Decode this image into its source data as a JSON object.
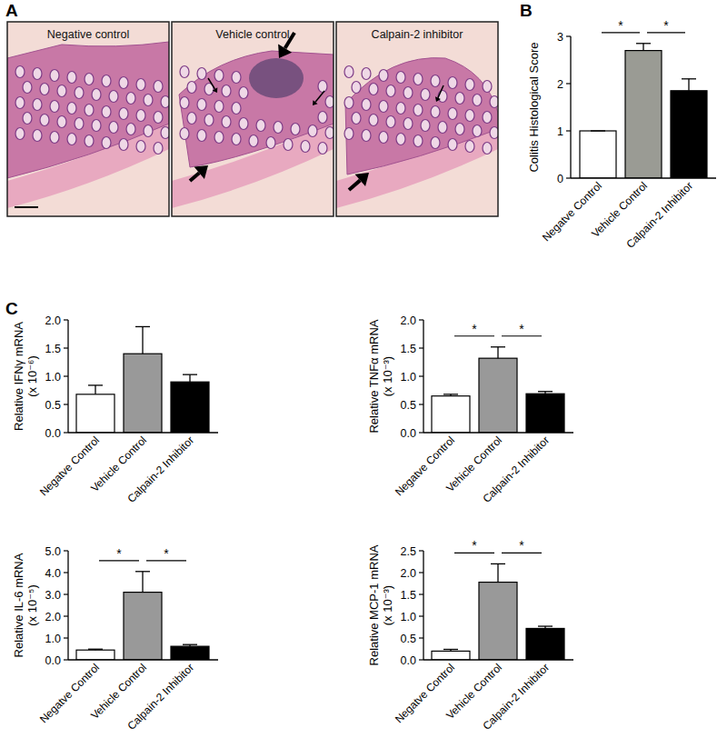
{
  "figure": {
    "panel_labels": [
      "A",
      "B",
      "C"
    ],
    "images": [
      "Negative control",
      "Vehicle control",
      "Calpain-2 inhibitor"
    ]
  },
  "chart_data": [
    {
      "type": "bar",
      "y_label": [
        "Colitis Histological Score"
      ],
      "categories": [
        "Negatve Control",
        "Vehicle Control",
        "Calpain-2 Inhibitor"
      ],
      "values": [
        1.0,
        2.7,
        1.85
      ],
      "errors": [
        0,
        0.15,
        0.25
      ],
      "colors": [
        "#ffffff",
        "#9a9b94",
        "#000000"
      ],
      "ylim": [
        0,
        3
      ],
      "yticks": [
        0,
        1,
        2,
        3
      ],
      "annotations": [
        {
          "text": "*",
          "from": 0,
          "to": 1
        },
        {
          "text": "*",
          "from": 1,
          "to": 2
        }
      ]
    },
    {
      "type": "bar",
      "y_label": [
        "Relative IFNγ mRNA",
        "(x 10⁻⁶)"
      ],
      "categories": [
        "Negatve Control",
        "Vehicle Control",
        "Calpain-2 Inhibitor"
      ],
      "values": [
        0.68,
        1.4,
        0.9
      ],
      "errors": [
        0.16,
        0.48,
        0.13
      ],
      "colors": [
        "#ffffff",
        "#999999",
        "#000000"
      ],
      "ylim": [
        0,
        2
      ],
      "yticks": [
        {
          "value": 0,
          "label": "0.0"
        },
        {
          "value": 0.5,
          "label": "0.5"
        },
        {
          "value": 1,
          "label": "1.0"
        },
        {
          "value": 1.5,
          "label": "1.5"
        },
        {
          "value": 2,
          "label": "2.0"
        }
      ],
      "annotations": []
    },
    {
      "type": "bar",
      "y_label": [
        "Relative TNFα mRNA",
        "(x 10⁻³)"
      ],
      "categories": [
        "Negatve Control",
        "Vehicle Control",
        "Calpain-2 Inhibitor"
      ],
      "values": [
        0.65,
        1.32,
        0.69
      ],
      "errors": [
        0.03,
        0.2,
        0.04
      ],
      "colors": [
        "#ffffff",
        "#999999",
        "#000000"
      ],
      "ylim": [
        0,
        2
      ],
      "yticks": [
        {
          "value": 0,
          "label": "0.0"
        },
        {
          "value": 0.5,
          "label": "0.5"
        },
        {
          "value": 1,
          "label": "1.0"
        },
        {
          "value": 1.5,
          "label": "1.5"
        },
        {
          "value": 2,
          "label": "2.0"
        }
      ],
      "annotations": [
        {
          "text": "*",
          "from": 0,
          "to": 1
        },
        {
          "text": "*",
          "from": 1,
          "to": 2
        }
      ]
    },
    {
      "type": "bar",
      "y_label": [
        "Relative IL-6 mRNA",
        "(x 10⁻⁵)"
      ],
      "categories": [
        "Negatve Control",
        "Vehicle Control",
        "Calpain-2 Inhibitor"
      ],
      "values": [
        0.45,
        3.1,
        0.62
      ],
      "errors": [
        0.04,
        0.95,
        0.08
      ],
      "colors": [
        "#ffffff",
        "#999999",
        "#000000"
      ],
      "ylim": [
        0,
        5
      ],
      "yticks": [
        {
          "value": 0,
          "label": "0.0"
        },
        {
          "value": 1,
          "label": "1.0"
        },
        {
          "value": 2,
          "label": "2.0"
        },
        {
          "value": 3,
          "label": "3.0"
        },
        {
          "value": 4,
          "label": "4.0"
        },
        {
          "value": 5,
          "label": "5.0"
        }
      ],
      "annotations": [
        {
          "text": "*",
          "from": 0,
          "to": 1
        },
        {
          "text": "*",
          "from": 1,
          "to": 2
        }
      ]
    },
    {
      "type": "bar",
      "y_label": [
        "Relative MCP-1 mRNA",
        "(x 10⁻³)"
      ],
      "categories": [
        "Negatve Control",
        "Vehicle Control",
        "Calpain-2 Inhibitor"
      ],
      "values": [
        0.2,
        1.78,
        0.72
      ],
      "errors": [
        0.04,
        0.42,
        0.05
      ],
      "colors": [
        "#ffffff",
        "#999999",
        "#000000"
      ],
      "ylim": [
        0,
        2.5
      ],
      "yticks": [
        {
          "value": 0,
          "label": "0.0"
        },
        {
          "value": 0.5,
          "label": "0.5"
        },
        {
          "value": 1,
          "label": "1.0"
        },
        {
          "value": 1.5,
          "label": "1.5"
        },
        {
          "value": 2,
          "label": "2.0"
        },
        {
          "value": 2.5,
          "label": "2.5"
        }
      ],
      "annotations": [
        {
          "text": "*",
          "from": 0,
          "to": 1
        },
        {
          "text": "*",
          "from": 1,
          "to": 2
        }
      ]
    }
  ]
}
